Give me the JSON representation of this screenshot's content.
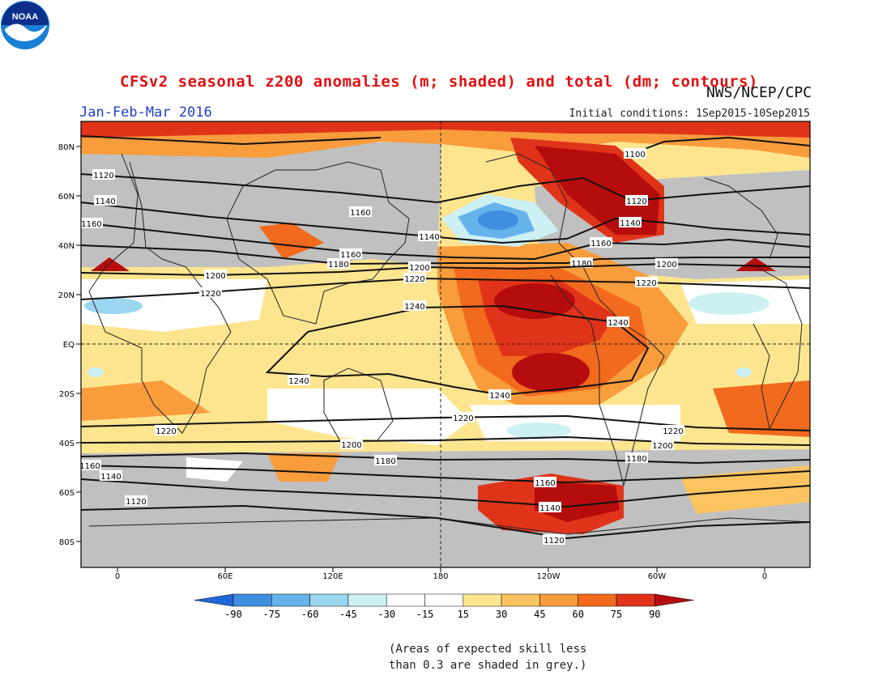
{
  "title": "CFSv2 seasonal z200 anomalies (m; shaded) and total (dm; contours)",
  "period": "Jan-Feb-Mar 2016",
  "initial_conditions": "Initial conditions: 1Sep2015-10Sep2015",
  "credit": "NWS/NCEP/CPC",
  "logo_text": "NOAA",
  "note_line1": "(Areas of expected skill less",
  "note_line2": "than 0.3 are shaded in grey.)",
  "colors": {
    "title": "#e01010",
    "period": "#1f3fd0",
    "grey": "#c0c0c0",
    "pos15": "#fde58f",
    "pos30": "#fbc460",
    "pos45": "#f89c3c",
    "pos60": "#f26a1e",
    "pos75": "#e0341a",
    "pos90": "#b50d0d",
    "neg15": "#ffffff",
    "neg30": "#ccf0f4",
    "neg45": "#9ad6f0",
    "neg60": "#66b3ec",
    "neg75": "#3f8fe0",
    "neg90": "#1f66d8"
  },
  "lat_ticks": [
    "80N",
    "60N",
    "40N",
    "20N",
    "EQ",
    "20S",
    "40S",
    "60S",
    "80S"
  ],
  "lon_ticks": [
    "0",
    "60E",
    "120E",
    "180",
    "120W",
    "60W",
    "0"
  ],
  "colorbar": {
    "labels": [
      "-90",
      "-75",
      "-60",
      "-45",
      "-30",
      "-15",
      "15",
      "30",
      "45",
      "60",
      "75",
      "90"
    ]
  },
  "contours": [
    {
      "label": "1100"
    },
    {
      "label": "1120"
    },
    {
      "label": "1140"
    },
    {
      "label": "1160"
    },
    {
      "label": "1180"
    },
    {
      "label": "1200"
    },
    {
      "label": "1220"
    },
    {
      "label": "1240"
    }
  ]
}
